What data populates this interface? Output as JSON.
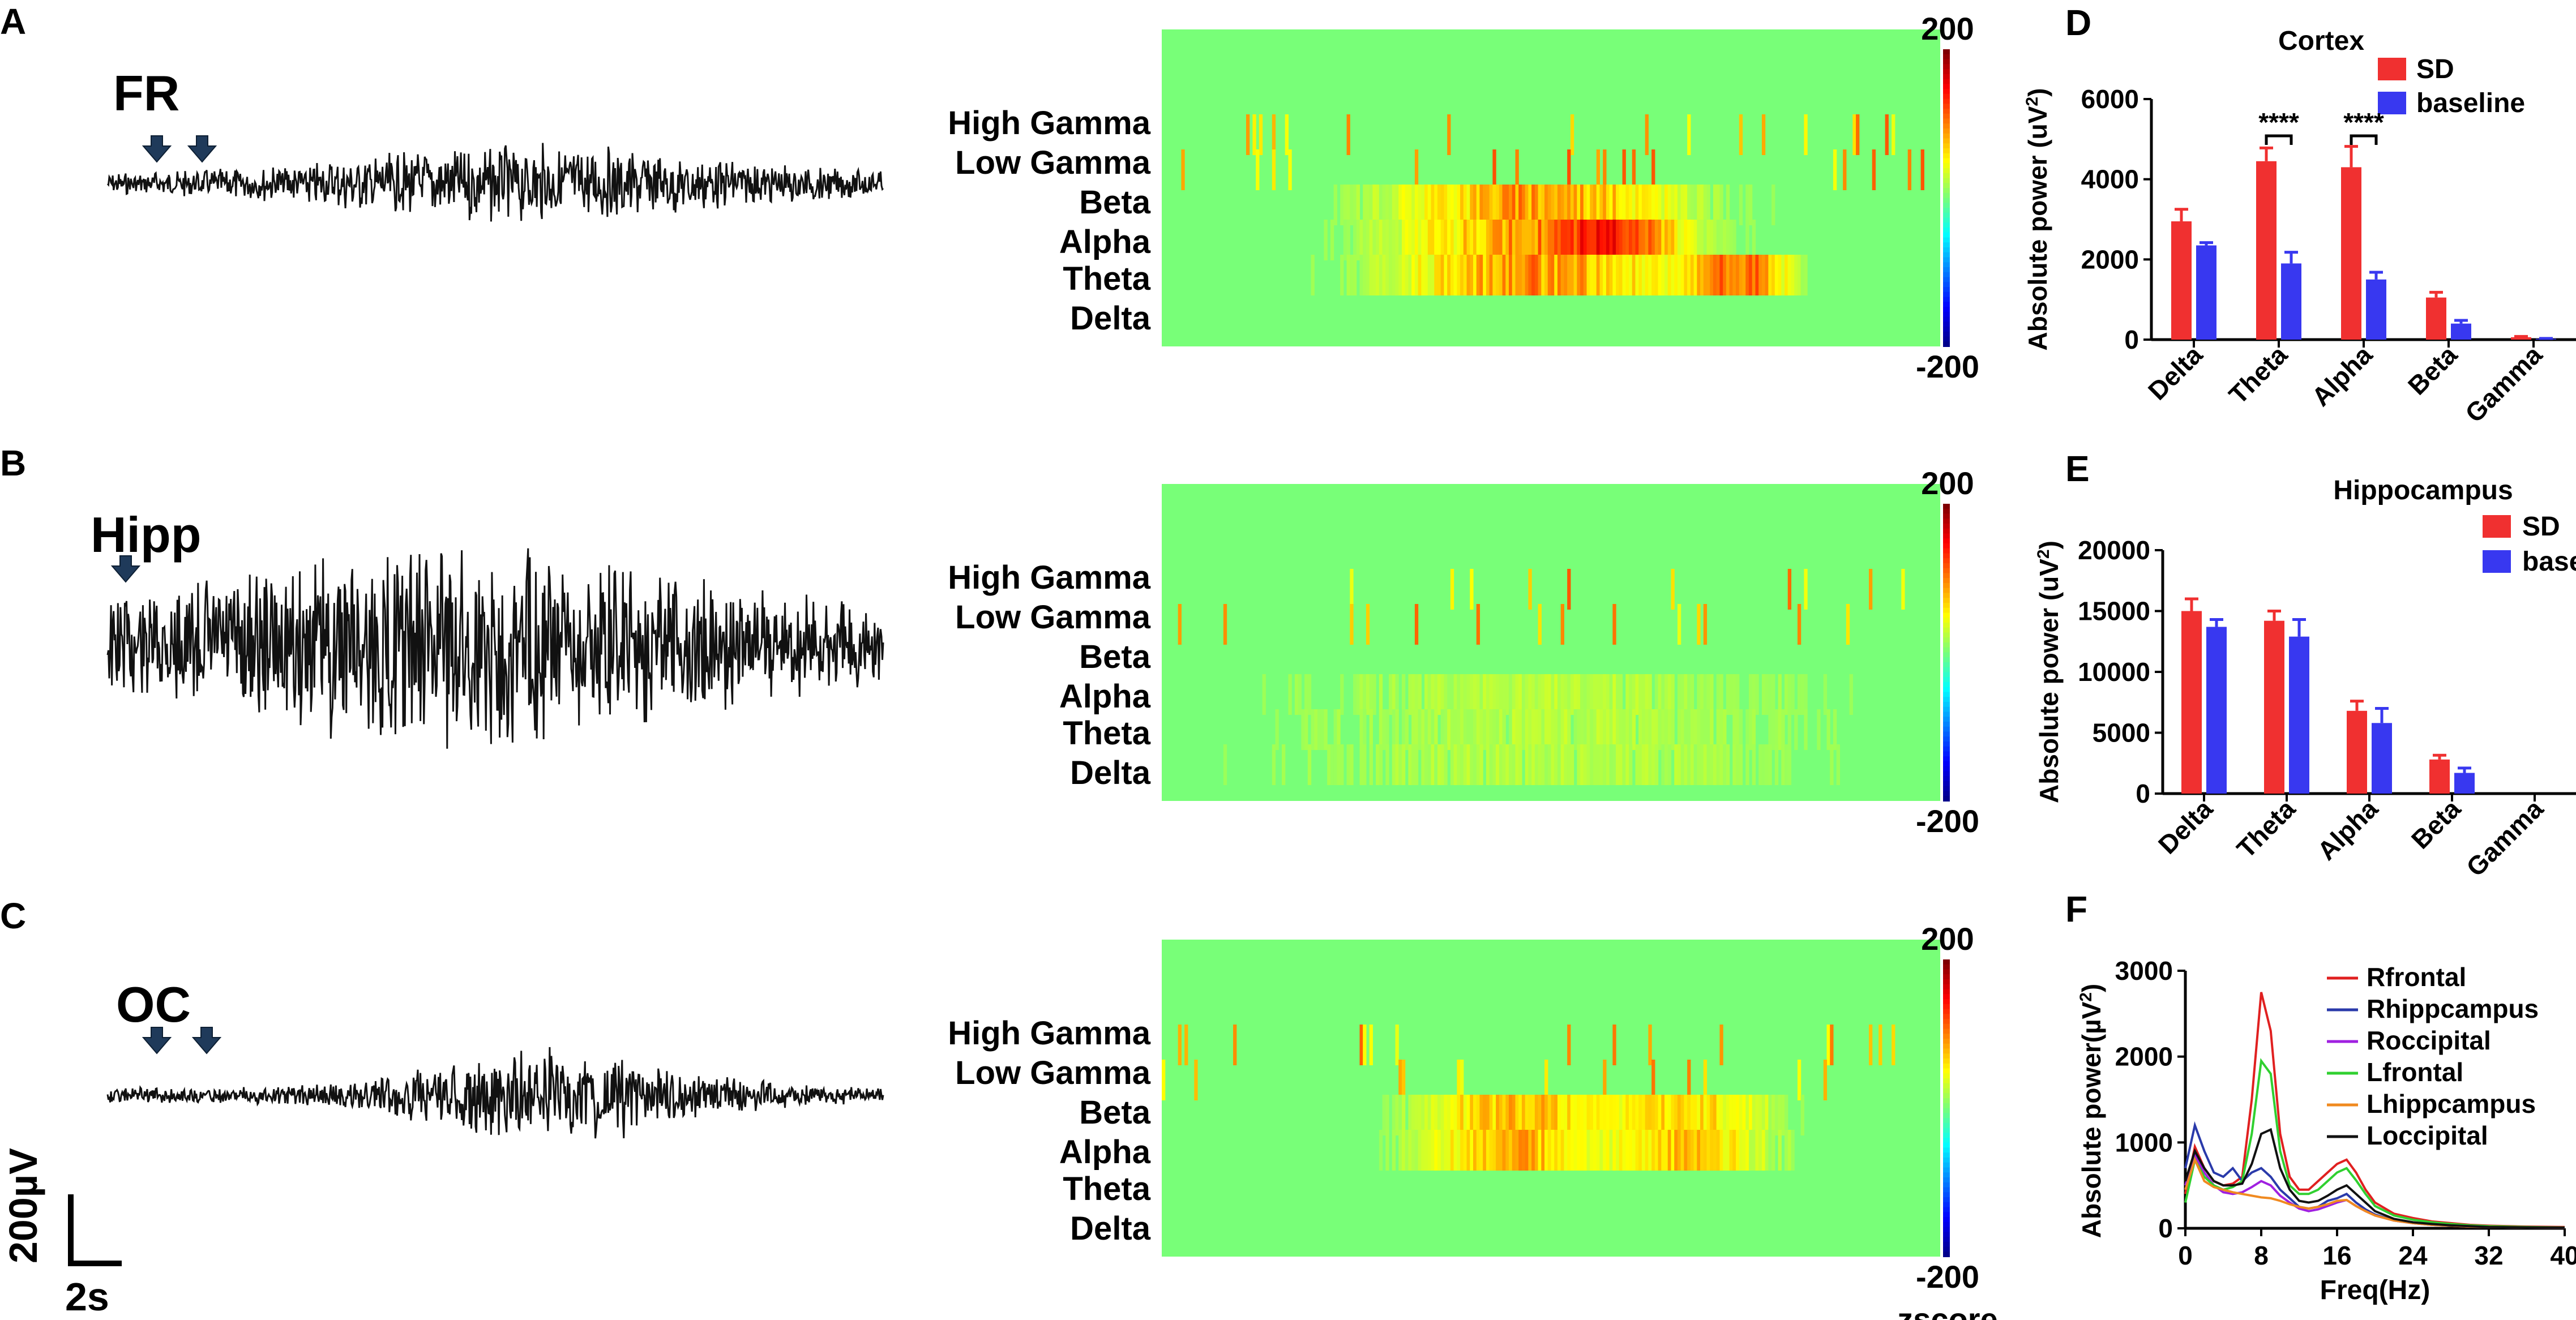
{
  "panels": {
    "a": "A",
    "b": "B",
    "c": "C",
    "d": "D",
    "e": "E",
    "f": "F"
  },
  "traces": [
    {
      "label": "FR",
      "arrows": 2
    },
    {
      "label": "Hipp",
      "arrows": 1
    },
    {
      "label": "OC",
      "arrows": 2
    }
  ],
  "scale_bar": {
    "amplitude": "200µV",
    "time": "2s"
  },
  "heatmap": {
    "bands": [
      "High Gamma",
      "Low Gamma",
      "Beta",
      "Alpha",
      "Theta",
      "Delta"
    ],
    "cbar_max": "200",
    "cbar_min": "-200",
    "cbar_label": "zscore"
  },
  "chart_data": [
    {
      "type": "bar",
      "title": "Cortex",
      "ylabel": "Absolute power (uV²)",
      "ylabel_text": "Absolute power (uV",
      "ylabel_sup": "2",
      "ylabel_tail": ")",
      "categories": [
        "Delta",
        "Theta",
        "Alpha",
        "Beta",
        "Gamma"
      ],
      "ylim": [
        0,
        6000
      ],
      "yticks": [
        "0",
        "2000",
        "4000",
        "6000"
      ],
      "series": [
        {
          "name": "SD",
          "color": "#f03030",
          "values": [
            2950,
            4450,
            4300,
            1050,
            60
          ],
          "errors": [
            300,
            330,
            520,
            130,
            20
          ]
        },
        {
          "name": "baseline",
          "color": "#3838f0",
          "values": [
            2350,
            1900,
            1500,
            400,
            20
          ],
          "errors": [
            70,
            280,
            180,
            80,
            10
          ]
        }
      ],
      "annotations": [
        "****",
        "****"
      ],
      "legend_position": "top-right"
    },
    {
      "type": "bar",
      "title": "Hippocampus",
      "ylabel": "Absolute power (uV²)",
      "ylabel_text": "Absolute power (uV",
      "ylabel_sup": "2",
      "ylabel_tail": ")",
      "categories": [
        "Delta",
        "Theta",
        "Alpha",
        "Beta",
        "Gamma"
      ],
      "ylim": [
        0,
        20000
      ],
      "yticks": [
        "0",
        "5000",
        "10000",
        "15000",
        "20000"
      ],
      "series": [
        {
          "name": "SD",
          "color": "#f03030",
          "values": [
            15000,
            14200,
            6800,
            2800,
            0
          ],
          "errors": [
            1000,
            800,
            800,
            350,
            0
          ]
        },
        {
          "name": "baseline",
          "color": "#3838f0",
          "values": [
            13700,
            12900,
            5800,
            1700,
            0
          ],
          "errors": [
            600,
            1400,
            1200,
            400,
            0
          ]
        }
      ],
      "legend_position": "top-right"
    },
    {
      "type": "line",
      "ylabel": "Absolute power(µV²)",
      "ylabel_text": "Absolute power(µV",
      "ylabel_sup": "2",
      "ylabel_tail": ")",
      "xlabel": "Freq(Hz)",
      "xlim": [
        0,
        40
      ],
      "ylim": [
        0,
        3000
      ],
      "xticks": [
        "0",
        "8",
        "16",
        "24",
        "32",
        "40"
      ],
      "yticks": [
        "0",
        "1000",
        "2000",
        "3000"
      ],
      "x": [
        0,
        1,
        2,
        3,
        4,
        5,
        6,
        7,
        8,
        9,
        10,
        11,
        12,
        13,
        14,
        15,
        16,
        17,
        18,
        19,
        20,
        22,
        24,
        26,
        28,
        30,
        32,
        36,
        40
      ],
      "series": [
        {
          "name": "Rfrontal",
          "color": "#e02020",
          "values": [
            400,
            950,
            700,
            550,
            500,
            520,
            600,
            1500,
            2750,
            2300,
            1100,
            600,
            450,
            450,
            550,
            650,
            750,
            800,
            650,
            450,
            300,
            170,
            120,
            80,
            60,
            40,
            30,
            20,
            15
          ]
        },
        {
          "name": "Rhippcampus",
          "color": "#2a3aaa",
          "values": [
            700,
            1200,
            900,
            650,
            600,
            700,
            550,
            650,
            700,
            600,
            450,
            350,
            250,
            230,
            250,
            320,
            350,
            400,
            300,
            220,
            160,
            90,
            60,
            40,
            30,
            20,
            15,
            10,
            8
          ]
        },
        {
          "name": "Roccipital",
          "color": "#a020e0",
          "values": [
            500,
            850,
            650,
            500,
            420,
            400,
            420,
            480,
            550,
            500,
            380,
            300,
            230,
            200,
            220,
            260,
            300,
            330,
            260,
            200,
            150,
            90,
            60,
            40,
            30,
            20,
            15,
            10,
            8
          ]
        },
        {
          "name": "Lfrontal",
          "color": "#30d030",
          "values": [
            300,
            800,
            600,
            500,
            450,
            480,
            550,
            1100,
            1950,
            1800,
            900,
            500,
            400,
            400,
            450,
            550,
            650,
            700,
            560,
            400,
            260,
            150,
            100,
            70,
            50,
            35,
            25,
            15,
            10
          ]
        },
        {
          "name": "Lhippcampus",
          "color": "#f08a20",
          "values": [
            450,
            800,
            550,
            480,
            450,
            420,
            400,
            380,
            360,
            350,
            320,
            280,
            250,
            230,
            250,
            280,
            320,
            330,
            260,
            200,
            150,
            90,
            60,
            40,
            30,
            20,
            15,
            10,
            8
          ]
        },
        {
          "name": "Loccipital",
          "color": "#111111",
          "values": [
            550,
            900,
            700,
            550,
            500,
            500,
            520,
            750,
            1100,
            1150,
            700,
            450,
            320,
            300,
            320,
            380,
            450,
            500,
            400,
            300,
            200,
            110,
            70,
            50,
            35,
            25,
            15,
            10,
            8
          ]
        }
      ],
      "legend_position": "top-right"
    }
  ]
}
